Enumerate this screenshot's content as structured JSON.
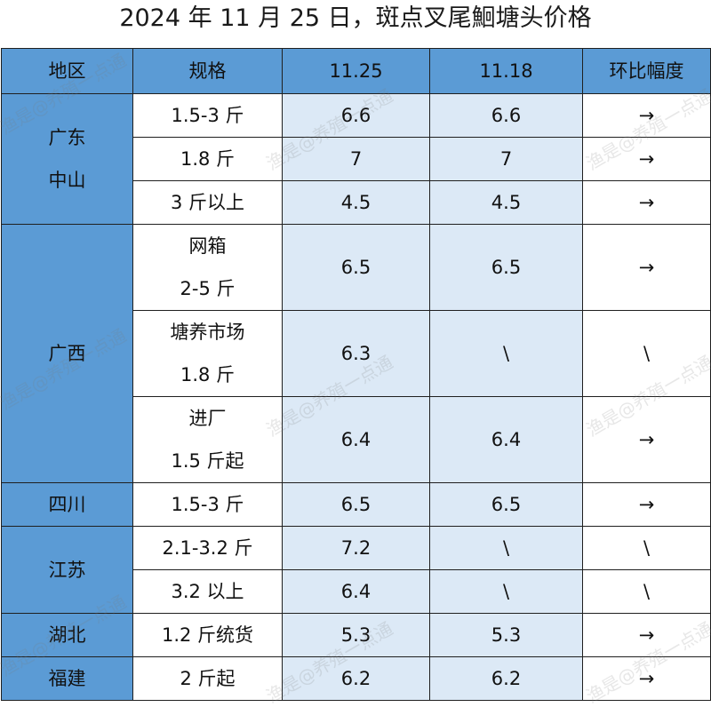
{
  "title": "2024 年 11 月 25 日，斑点叉尾鮰塘头价格",
  "headers": [
    "地区",
    "规格",
    "11.25",
    "11.18",
    "环比幅度"
  ],
  "groups": [
    {
      "region": [
        "广东",
        "中山"
      ],
      "rows": [
        {
          "spec": [
            "1.5-3 斤"
          ],
          "p1125": "6.6",
          "p1118": "6.6",
          "change": "→"
        },
        {
          "spec": [
            "1.8 斤"
          ],
          "p1125": "7",
          "p1118": "7",
          "change": "→"
        },
        {
          "spec": [
            "3 斤以上"
          ],
          "p1125": "4.5",
          "p1118": "4.5",
          "change": "→"
        }
      ]
    },
    {
      "region": [
        "广西"
      ],
      "rows": [
        {
          "spec": [
            "网箱",
            "2-5 斤"
          ],
          "p1125": "6.5",
          "p1118": "6.5",
          "change": "→"
        },
        {
          "spec": [
            "塘养市场",
            "1.8 斤"
          ],
          "p1125": "6.3",
          "p1118": "\\",
          "change": "\\"
        },
        {
          "spec": [
            "进厂",
            "1.5 斤起"
          ],
          "p1125": "6.4",
          "p1118": "6.4",
          "change": "→"
        }
      ]
    },
    {
      "region": [
        "四川"
      ],
      "rows": [
        {
          "spec": [
            "1.5-3 斤"
          ],
          "p1125": "6.5",
          "p1118": "6.5",
          "change": "→"
        }
      ]
    },
    {
      "region": [
        "江苏"
      ],
      "rows": [
        {
          "spec": [
            "2.1-3.2 斤"
          ],
          "p1125": "7.2",
          "p1118": "\\",
          "change": "\\"
        },
        {
          "spec": [
            "3.2 以上"
          ],
          "p1125": "6.4",
          "p1118": "\\",
          "change": "\\"
        }
      ]
    },
    {
      "region": [
        "湖北"
      ],
      "rows": [
        {
          "spec": [
            "1.2 斤统货"
          ],
          "p1125": "5.3",
          "p1118": "5.3",
          "change": "→"
        }
      ]
    },
    {
      "region": [
        "福建"
      ],
      "rows": [
        {
          "spec": [
            "2 斤起"
          ],
          "p1125": "6.2",
          "p1118": "6.2",
          "change": "→"
        }
      ]
    }
  ],
  "watermark": [
    "渔是@养殖一点通"
  ],
  "colors": {
    "header": "#5b9bd5",
    "light": "#dce9f6",
    "white": "#ffffff"
  }
}
